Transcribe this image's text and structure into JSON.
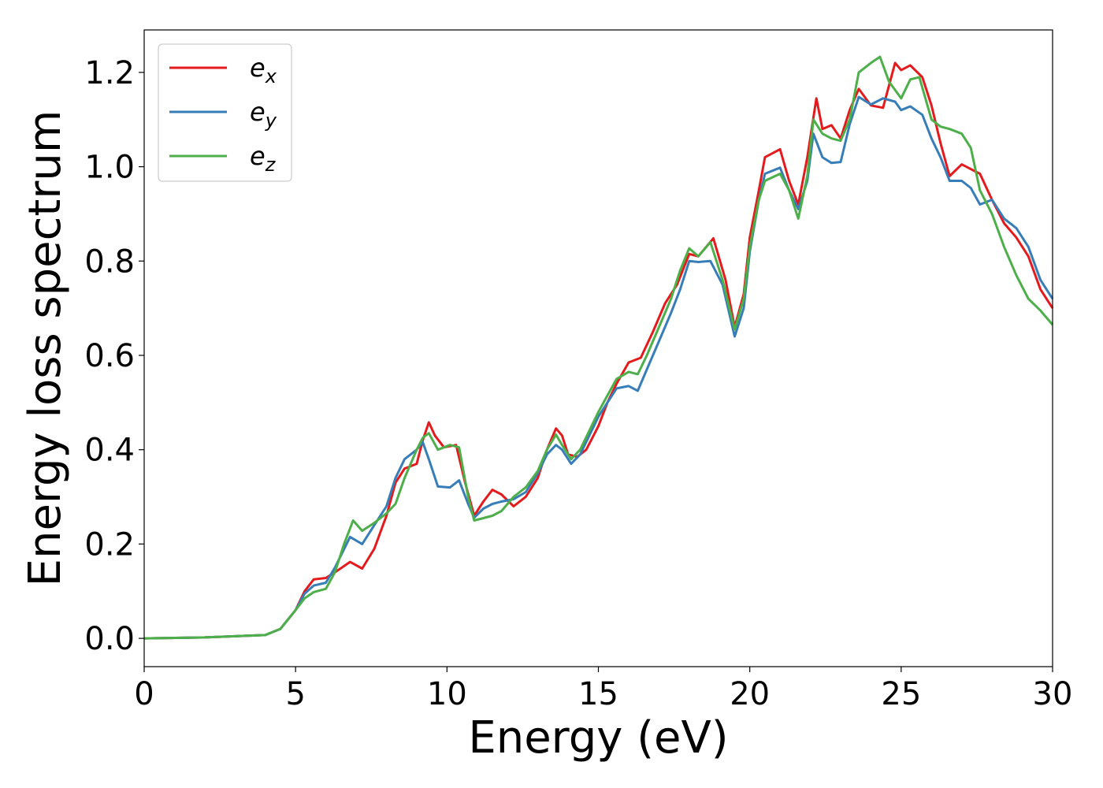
{
  "chart_data": {
    "type": "line",
    "xlabel": "Energy (eV)",
    "ylabel": "Energy loss spectrum",
    "xlim": [
      0,
      30
    ],
    "ylim": [
      -0.06,
      1.29
    ],
    "xticks": [
      "0",
      "5",
      "10",
      "15",
      "20",
      "25",
      "30"
    ],
    "yticks": [
      "0.0",
      "0.2",
      "0.4",
      "0.6",
      "0.8",
      "1.0",
      "1.2"
    ],
    "grid": false,
    "legend_position": "top-left",
    "series": [
      {
        "name": "e",
        "subscript": "x",
        "color": "#e41a1c",
        "points": [
          [
            0,
            0.0
          ],
          [
            2,
            0.002
          ],
          [
            4,
            0.007
          ],
          [
            4.5,
            0.02
          ],
          [
            5,
            0.06
          ],
          [
            5.3,
            0.1
          ],
          [
            5.6,
            0.125
          ],
          [
            6,
            0.128
          ],
          [
            6.3,
            0.14
          ],
          [
            6.8,
            0.162
          ],
          [
            7.2,
            0.148
          ],
          [
            7.6,
            0.19
          ],
          [
            8,
            0.26
          ],
          [
            8.3,
            0.33
          ],
          [
            8.6,
            0.36
          ],
          [
            9,
            0.37
          ],
          [
            9.2,
            0.42
          ],
          [
            9.4,
            0.458
          ],
          [
            9.6,
            0.43
          ],
          [
            9.9,
            0.405
          ],
          [
            10.3,
            0.41
          ],
          [
            10.6,
            0.33
          ],
          [
            10.9,
            0.26
          ],
          [
            11.2,
            0.29
          ],
          [
            11.5,
            0.315
          ],
          [
            11.8,
            0.305
          ],
          [
            12.2,
            0.28
          ],
          [
            12.6,
            0.3
          ],
          [
            13,
            0.34
          ],
          [
            13.3,
            0.4
          ],
          [
            13.6,
            0.445
          ],
          [
            13.8,
            0.43
          ],
          [
            14,
            0.39
          ],
          [
            14.3,
            0.385
          ],
          [
            14.6,
            0.4
          ],
          [
            15,
            0.45
          ],
          [
            15.3,
            0.5
          ],
          [
            15.6,
            0.54
          ],
          [
            16,
            0.585
          ],
          [
            16.4,
            0.595
          ],
          [
            16.8,
            0.65
          ],
          [
            17.2,
            0.71
          ],
          [
            17.6,
            0.75
          ],
          [
            18,
            0.815
          ],
          [
            18.3,
            0.81
          ],
          [
            18.8,
            0.848
          ],
          [
            19.2,
            0.76
          ],
          [
            19.5,
            0.66
          ],
          [
            19.8,
            0.73
          ],
          [
            20,
            0.85
          ],
          [
            20.3,
            0.95
          ],
          [
            20.5,
            1.02
          ],
          [
            21,
            1.037
          ],
          [
            21.3,
            0.97
          ],
          [
            21.6,
            0.92
          ],
          [
            21.9,
            1.02
          ],
          [
            22.2,
            1.145
          ],
          [
            22.4,
            1.08
          ],
          [
            22.7,
            1.088
          ],
          [
            23,
            1.06
          ],
          [
            23.3,
            1.12
          ],
          [
            23.6,
            1.165
          ],
          [
            24,
            1.13
          ],
          [
            24.4,
            1.125
          ],
          [
            24.8,
            1.22
          ],
          [
            25,
            1.205
          ],
          [
            25.3,
            1.215
          ],
          [
            25.7,
            1.19
          ],
          [
            26,
            1.13
          ],
          [
            26.3,
            1.05
          ],
          [
            26.6,
            0.98
          ],
          [
            27,
            1.005
          ],
          [
            27.3,
            0.995
          ],
          [
            27.6,
            0.985
          ],
          [
            28,
            0.93
          ],
          [
            28.4,
            0.88
          ],
          [
            28.8,
            0.85
          ],
          [
            29.2,
            0.81
          ],
          [
            29.6,
            0.74
          ],
          [
            30,
            0.7
          ]
        ]
      },
      {
        "name": "e",
        "subscript": "y",
        "color": "#377eb8",
        "points": [
          [
            0,
            0.0
          ],
          [
            2,
            0.002
          ],
          [
            4,
            0.007
          ],
          [
            4.5,
            0.02
          ],
          [
            5,
            0.06
          ],
          [
            5.3,
            0.095
          ],
          [
            5.6,
            0.112
          ],
          [
            6,
            0.118
          ],
          [
            6.3,
            0.15
          ],
          [
            6.8,
            0.215
          ],
          [
            7.2,
            0.2
          ],
          [
            7.6,
            0.24
          ],
          [
            8,
            0.28
          ],
          [
            8.3,
            0.34
          ],
          [
            8.6,
            0.38
          ],
          [
            9,
            0.4
          ],
          [
            9.2,
            0.416
          ],
          [
            9.4,
            0.38
          ],
          [
            9.7,
            0.322
          ],
          [
            10.1,
            0.32
          ],
          [
            10.4,
            0.335
          ],
          [
            10.7,
            0.285
          ],
          [
            10.9,
            0.256
          ],
          [
            11.2,
            0.275
          ],
          [
            11.5,
            0.285
          ],
          [
            11.8,
            0.29
          ],
          [
            12.2,
            0.295
          ],
          [
            12.6,
            0.31
          ],
          [
            13,
            0.35
          ],
          [
            13.3,
            0.39
          ],
          [
            13.6,
            0.41
          ],
          [
            13.8,
            0.4
          ],
          [
            14.1,
            0.37
          ],
          [
            14.4,
            0.39
          ],
          [
            14.7,
            0.43
          ],
          [
            15,
            0.47
          ],
          [
            15.3,
            0.5
          ],
          [
            15.6,
            0.53
          ],
          [
            16,
            0.535
          ],
          [
            16.3,
            0.525
          ],
          [
            16.6,
            0.57
          ],
          [
            17,
            0.63
          ],
          [
            17.4,
            0.69
          ],
          [
            17.7,
            0.74
          ],
          [
            18,
            0.8
          ],
          [
            18.3,
            0.798
          ],
          [
            18.7,
            0.8
          ],
          [
            19.1,
            0.75
          ],
          [
            19.5,
            0.64
          ],
          [
            19.8,
            0.7
          ],
          [
            20,
            0.82
          ],
          [
            20.3,
            0.93
          ],
          [
            20.5,
            0.985
          ],
          [
            21,
            0.998
          ],
          [
            21.3,
            0.95
          ],
          [
            21.6,
            0.91
          ],
          [
            21.9,
            0.97
          ],
          [
            22.1,
            1.07
          ],
          [
            22.4,
            1.02
          ],
          [
            22.7,
            1.008
          ],
          [
            23,
            1.01
          ],
          [
            23.3,
            1.09
          ],
          [
            23.6,
            1.148
          ],
          [
            24,
            1.132
          ],
          [
            24.4,
            1.145
          ],
          [
            24.8,
            1.138
          ],
          [
            25,
            1.12
          ],
          [
            25.3,
            1.128
          ],
          [
            25.7,
            1.11
          ],
          [
            26,
            1.06
          ],
          [
            26.3,
            1.02
          ],
          [
            26.6,
            0.97
          ],
          [
            27,
            0.97
          ],
          [
            27.3,
            0.955
          ],
          [
            27.6,
            0.92
          ],
          [
            28,
            0.93
          ],
          [
            28.4,
            0.89
          ],
          [
            28.8,
            0.87
          ],
          [
            29.2,
            0.83
          ],
          [
            29.6,
            0.76
          ],
          [
            30,
            0.72
          ]
        ]
      },
      {
        "name": "e",
        "subscript": "z",
        "color": "#4daf4a",
        "points": [
          [
            0,
            0.0
          ],
          [
            2,
            0.002
          ],
          [
            4,
            0.007
          ],
          [
            4.5,
            0.02
          ],
          [
            5,
            0.06
          ],
          [
            5.3,
            0.085
          ],
          [
            5.6,
            0.098
          ],
          [
            6,
            0.105
          ],
          [
            6.3,
            0.14
          ],
          [
            6.6,
            0.2
          ],
          [
            6.9,
            0.25
          ],
          [
            7.2,
            0.228
          ],
          [
            7.6,
            0.245
          ],
          [
            8,
            0.265
          ],
          [
            8.3,
            0.285
          ],
          [
            8.6,
            0.34
          ],
          [
            9,
            0.4
          ],
          [
            9.2,
            0.425
          ],
          [
            9.4,
            0.435
          ],
          [
            9.7,
            0.4
          ],
          [
            10.1,
            0.41
          ],
          [
            10.4,
            0.405
          ],
          [
            10.7,
            0.3
          ],
          [
            10.9,
            0.25
          ],
          [
            11.2,
            0.255
          ],
          [
            11.5,
            0.26
          ],
          [
            11.8,
            0.27
          ],
          [
            12.2,
            0.3
          ],
          [
            12.6,
            0.32
          ],
          [
            13,
            0.355
          ],
          [
            13.3,
            0.4
          ],
          [
            13.6,
            0.432
          ],
          [
            13.8,
            0.41
          ],
          [
            14.1,
            0.38
          ],
          [
            14.4,
            0.4
          ],
          [
            14.7,
            0.44
          ],
          [
            15,
            0.48
          ],
          [
            15.3,
            0.515
          ],
          [
            15.6,
            0.55
          ],
          [
            16,
            0.565
          ],
          [
            16.3,
            0.56
          ],
          [
            16.6,
            0.6
          ],
          [
            17,
            0.66
          ],
          [
            17.4,
            0.72
          ],
          [
            17.7,
            0.78
          ],
          [
            18,
            0.827
          ],
          [
            18.3,
            0.81
          ],
          [
            18.7,
            0.84
          ],
          [
            19.1,
            0.76
          ],
          [
            19.5,
            0.655
          ],
          [
            19.8,
            0.72
          ],
          [
            20,
            0.83
          ],
          [
            20.3,
            0.93
          ],
          [
            20.5,
            0.97
          ],
          [
            21,
            0.985
          ],
          [
            21.3,
            0.95
          ],
          [
            21.6,
            0.89
          ],
          [
            21.9,
            0.98
          ],
          [
            22.1,
            1.1
          ],
          [
            22.4,
            1.07
          ],
          [
            22.7,
            1.06
          ],
          [
            23,
            1.055
          ],
          [
            23.3,
            1.1
          ],
          [
            23.6,
            1.2
          ],
          [
            24,
            1.22
          ],
          [
            24.3,
            1.233
          ],
          [
            24.6,
            1.18
          ],
          [
            25,
            1.145
          ],
          [
            25.3,
            1.185
          ],
          [
            25.6,
            1.19
          ],
          [
            26,
            1.1
          ],
          [
            26.3,
            1.085
          ],
          [
            26.6,
            1.08
          ],
          [
            27,
            1.07
          ],
          [
            27.3,
            1.04
          ],
          [
            27.6,
            0.95
          ],
          [
            28,
            0.9
          ],
          [
            28.4,
            0.83
          ],
          [
            28.8,
            0.77
          ],
          [
            29.2,
            0.72
          ],
          [
            29.6,
            0.695
          ],
          [
            30,
            0.665
          ]
        ]
      }
    ]
  }
}
